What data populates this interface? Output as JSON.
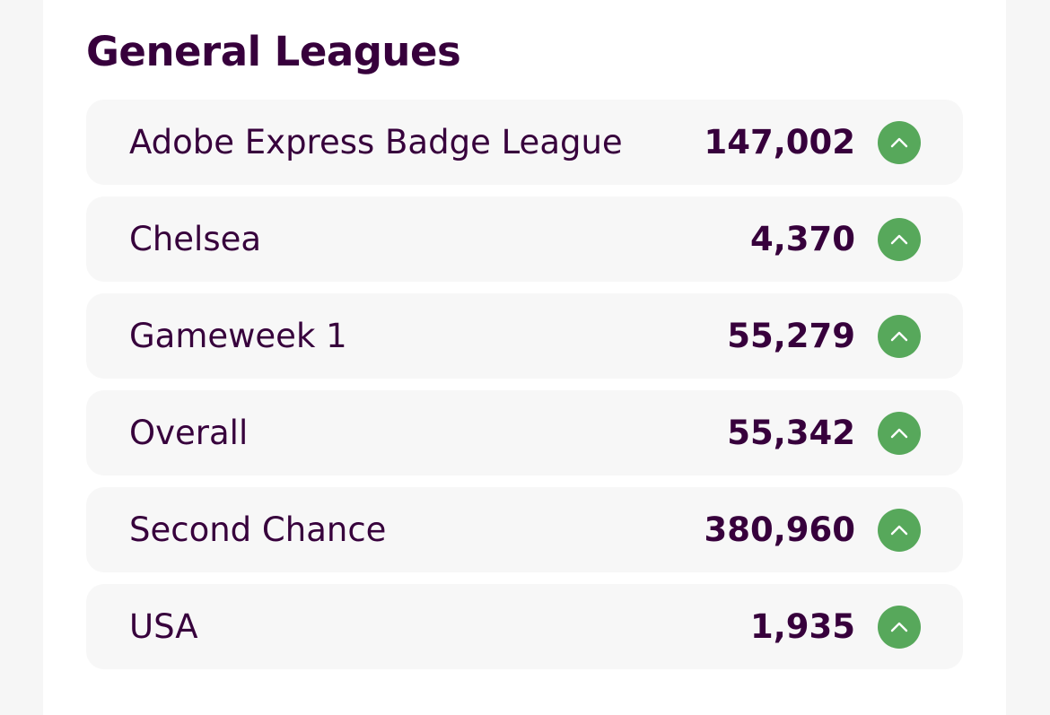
{
  "section": {
    "title": "General Leagues"
  },
  "leagues": [
    {
      "name": "Adobe Express Badge League",
      "rank": "147,002",
      "movement_icon": "chevron-up-icon"
    },
    {
      "name": "Chelsea",
      "rank": "4,370",
      "movement_icon": "chevron-up-icon"
    },
    {
      "name": "Gameweek 1",
      "rank": "55,279",
      "movement_icon": "chevron-up-icon"
    },
    {
      "name": "Overall",
      "rank": "55,342",
      "movement_icon": "chevron-up-icon"
    },
    {
      "name": "Second Chance",
      "rank": "380,960",
      "movement_icon": "chevron-up-icon"
    },
    {
      "name": "USA",
      "rank": "1,935",
      "movement_icon": "chevron-up-icon"
    }
  ],
  "colors": {
    "text": "#37003c",
    "row_background": "#f7f7f7",
    "rank_up": "#57a85b"
  }
}
